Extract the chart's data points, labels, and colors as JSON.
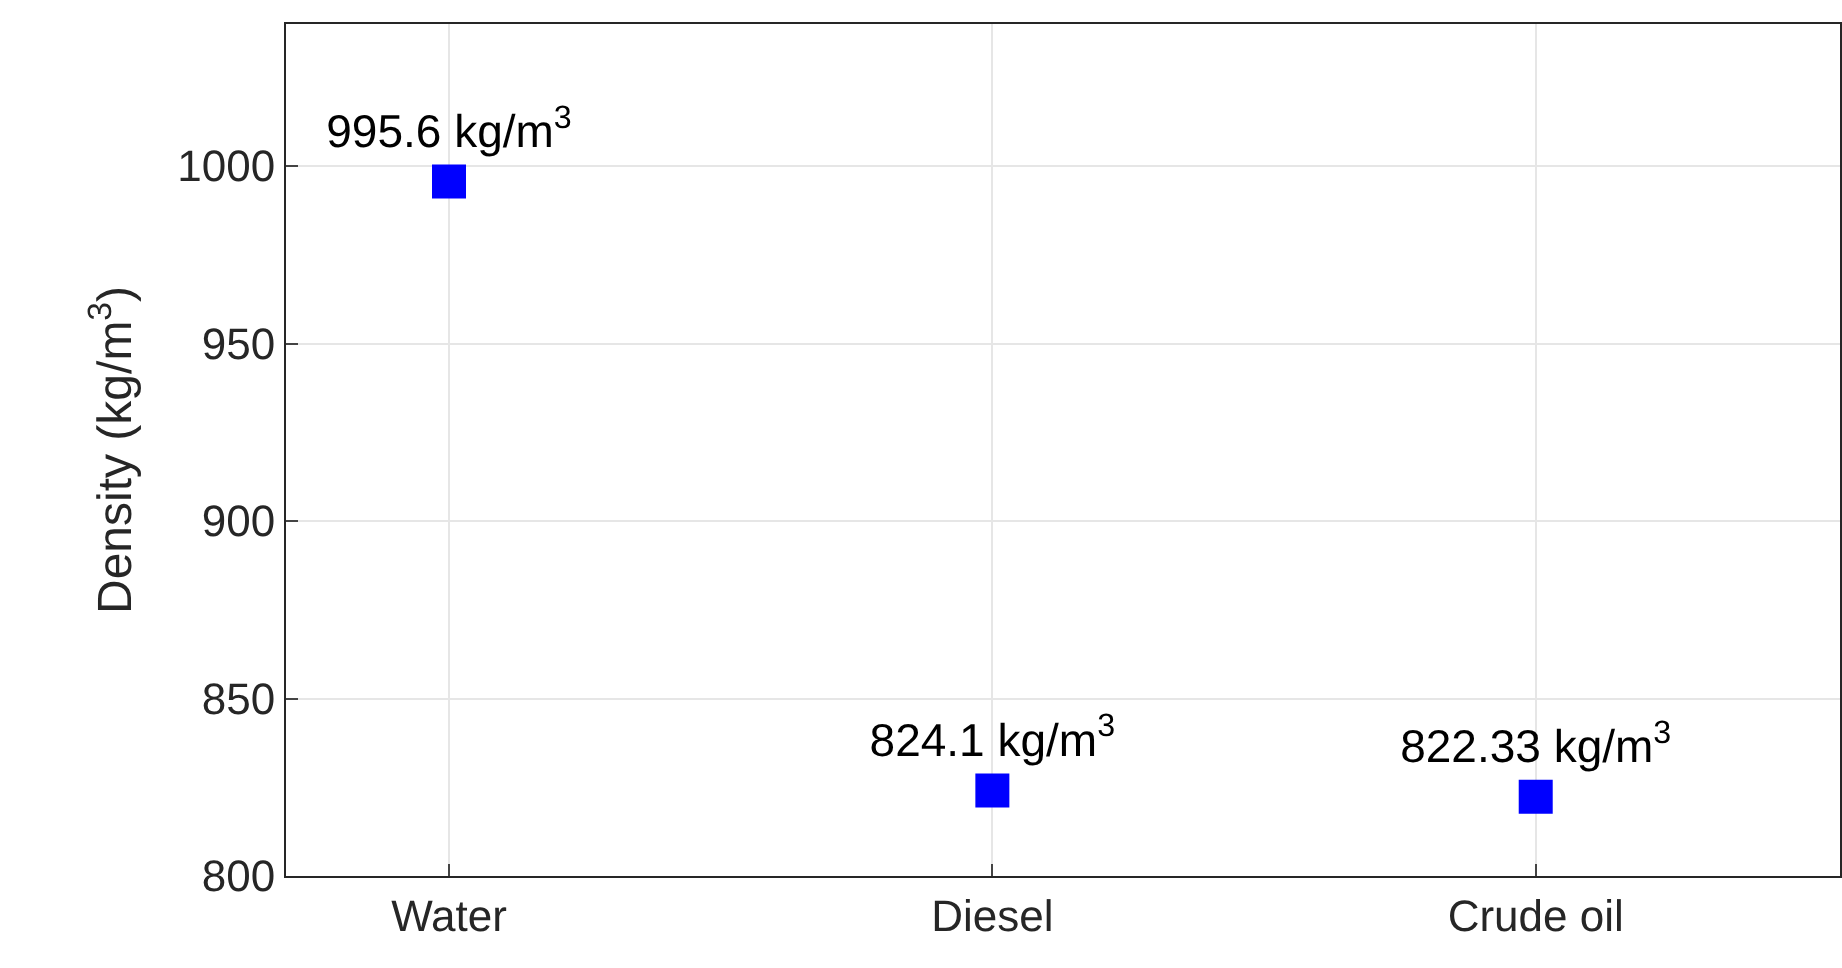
{
  "chart_data": {
    "type": "scatter",
    "ylabel": "Density (kg/m$^{3}$)",
    "categories": [
      "Water",
      "Diesel",
      "Crude oil"
    ],
    "series": [
      {
        "color": "#0000ff",
        "values": [
          995.6,
          824.1,
          822.33
        ],
        "value_labels": [
          "995.6 kg/m$^{3}$",
          "824.1 kg/m$^{3}$",
          "822.33 kg/m$^{3}$"
        ]
      }
    ],
    "ylim": [
      800,
      1040
    ],
    "yticks": [
      800,
      850,
      900,
      950,
      1000
    ],
    "grid": true,
    "marker": "square",
    "legend": false
  }
}
